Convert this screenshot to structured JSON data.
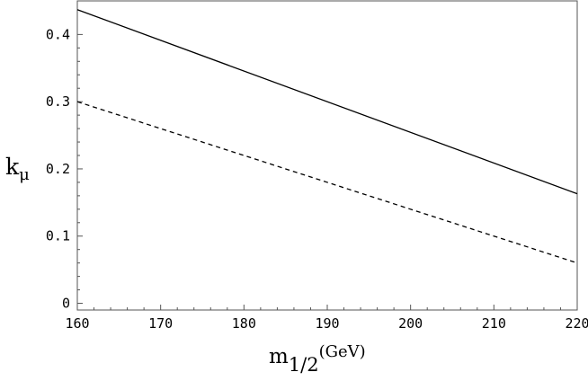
{
  "chart_data": {
    "type": "line",
    "xlabel_main": "m",
    "xlabel_sub": "1/2",
    "xlabel_unit": "(GeV)",
    "ylabel_main": "k",
    "ylabel_sub": "μ",
    "xlim": [
      160,
      220
    ],
    "ylim": [
      -0.01,
      0.45
    ],
    "x_ticks": [
      160,
      170,
      180,
      190,
      200,
      210,
      220
    ],
    "x_tick_labels": [
      "160",
      "170",
      "180",
      "190",
      "200",
      "210",
      "220"
    ],
    "y_ticks": [
      0,
      0.1,
      0.2,
      0.3,
      0.4
    ],
    "y_tick_labels": [
      "0",
      "0.1",
      "0.2",
      "0.3",
      "0.4"
    ],
    "grid": false,
    "series": [
      {
        "style": "solid",
        "color": "#000000",
        "x": [
          160,
          220
        ],
        "y": [
          0.437,
          0.163
        ]
      },
      {
        "style": "dashed",
        "color": "#000000",
        "x": [
          160,
          220
        ],
        "y": [
          0.3,
          0.06
        ]
      }
    ]
  }
}
